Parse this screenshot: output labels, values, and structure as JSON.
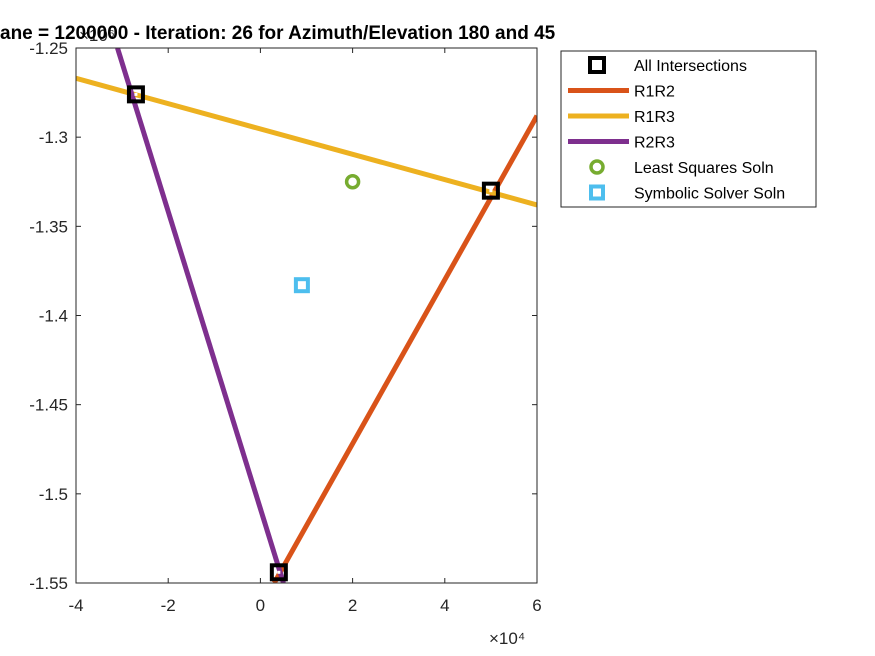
{
  "chart_data": {
    "type": "line",
    "title": "ane = 1200000 - Iteration: 26 for Azimuth/Elevation 180 and 45",
    "xlabel": "",
    "ylabel": "",
    "x_exponent_label": "×10⁴",
    "y_exponent_label": "×10⁶",
    "xlim": [
      -40000,
      60000
    ],
    "ylim": [
      -1550000,
      -1250000
    ],
    "xticks": [
      -40000,
      -20000,
      0,
      20000,
      40000,
      60000
    ],
    "xtick_labels": [
      "-4",
      "-2",
      "0",
      "2",
      "4",
      "6"
    ],
    "yticks": [
      -1550000,
      -1500000,
      -1450000,
      -1400000,
      -1350000,
      -1300000,
      -1250000
    ],
    "ytick_labels": [
      "-1.55",
      "-1.5",
      "-1.45",
      "-1.4",
      "-1.35",
      "-1.3",
      "-1.25"
    ],
    "grid": false,
    "legend_position": "outside-top-right",
    "series": [
      {
        "name": "All Intersections",
        "kind": "marker",
        "marker": "square",
        "color": "#000000",
        "points": [
          [
            -27000,
            -1276000
          ],
          [
            50000,
            -1330000
          ],
          [
            4000,
            -1544000
          ]
        ]
      },
      {
        "name": "R1R2",
        "kind": "line",
        "color": "#D95319",
        "points": [
          [
            3000,
            -1550000
          ],
          [
            60000,
            -1288000
          ]
        ]
      },
      {
        "name": "R1R3",
        "kind": "line",
        "color": "#EDB120",
        "points": [
          [
            -40000,
            -1267000
          ],
          [
            60000,
            -1338000
          ]
        ]
      },
      {
        "name": "R2R3",
        "kind": "line",
        "color": "#7E2F8E",
        "points": [
          [
            -31000,
            -1250000
          ],
          [
            5000,
            -1550000
          ]
        ]
      },
      {
        "name": "Least Squares Soln",
        "kind": "marker",
        "marker": "circle",
        "color": "#77AC30",
        "points": [
          [
            20000,
            -1325000
          ]
        ]
      },
      {
        "name": "Symbolic Solver Soln",
        "kind": "marker",
        "marker": "square-small",
        "color": "#4DBEEE",
        "points": [
          [
            9000,
            -1383000
          ]
        ]
      }
    ]
  }
}
